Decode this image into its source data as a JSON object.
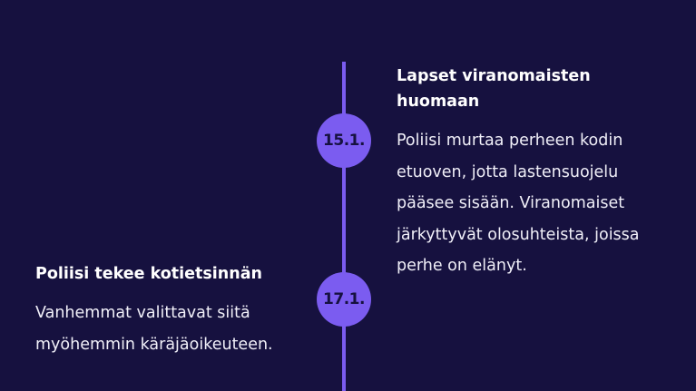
{
  "colors": {
    "background": "#16113f",
    "accent": "#7b5cf0",
    "text": "#ffffff"
  },
  "timeline": {
    "events": [
      {
        "date": "15.1.",
        "title": "Lapset viranomaisten huomaan",
        "text": "Poliisi murtaa perheen kodin etuoven, jotta lastensuojelu pääsee sisään. Viranomaiset järkyttyvät olosuhteista, joissa perhe on elänyt.",
        "side": "right"
      },
      {
        "date": "17.1.",
        "title": "Poliisi tekee kotietsinnän",
        "text": "Vanhemmat valittavat siitä myöhemmin käräjäoikeuteen.",
        "side": "left"
      }
    ]
  }
}
